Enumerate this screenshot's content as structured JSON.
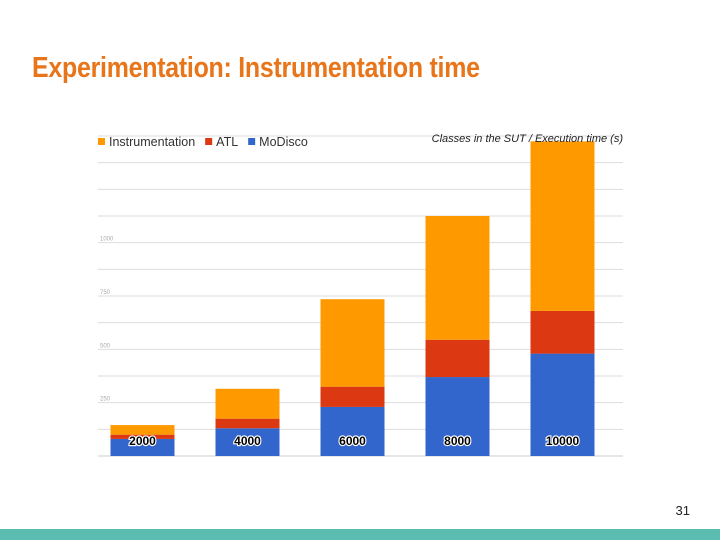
{
  "slide": {
    "title": "Experimentation: Instrumentation time",
    "page_number": "31"
  },
  "chart_data": {
    "type": "bar",
    "stacked": true,
    "title": "",
    "subtitle": "Classes in the SUT / Execution time (s)",
    "categories": [
      "2000",
      "4000",
      "6000",
      "8000",
      "10000"
    ],
    "series": [
      {
        "name": "MoDisco",
        "color": "#3366cc",
        "values": [
          80,
          130,
          230,
          370,
          480
        ]
      },
      {
        "name": "ATL",
        "color": "#dc3912",
        "values": [
          20,
          45,
          95,
          175,
          200
        ]
      },
      {
        "name": "Instrumentation",
        "color": "#ff9900",
        "values": [
          45,
          140,
          410,
          580,
          795
        ]
      }
    ],
    "legend": [
      "Instrumentation",
      "ATL",
      "MoDisco"
    ],
    "legend_colors": [
      "#ff9900",
      "#dc3912",
      "#3366cc"
    ],
    "legend_position": "top-left",
    "yticks": [
      "250",
      "500",
      "750",
      "1000"
    ],
    "ylim": [
      0,
      1500
    ],
    "grid": true,
    "xlabel": "",
    "ylabel": ""
  },
  "colors": {
    "title": "#e8751a",
    "footer": "#5bbcb0"
  }
}
